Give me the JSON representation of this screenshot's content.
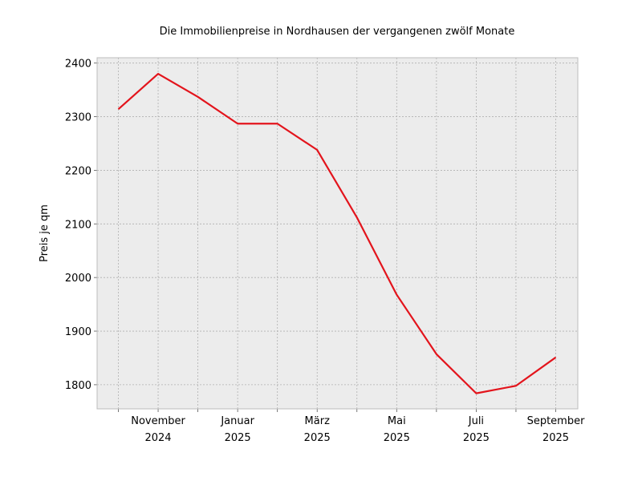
{
  "chart_data": {
    "type": "line",
    "title": "Die Immobilienpreise in Nordhausen der vergangenen zwölf Monate",
    "xlabel": "",
    "ylabel": "Preis je qm",
    "ylim": [
      1755,
      2410
    ],
    "yticks": [
      1800,
      1900,
      2000,
      2100,
      2200,
      2300,
      2400
    ],
    "x": [
      "2024-10",
      "2024-11",
      "2024-12",
      "2025-01",
      "2025-02",
      "2025-03",
      "2025-04",
      "2025-05",
      "2025-06",
      "2025-07",
      "2025-08",
      "2025-09"
    ],
    "xtick_labels": [
      {
        "x": "2024-11",
        "line1": "November",
        "line2": "2024"
      },
      {
        "x": "2025-01",
        "line1": "Januar",
        "line2": "2025"
      },
      {
        "x": "2025-03",
        "line1": "März",
        "line2": "2025"
      },
      {
        "x": "2025-05",
        "line1": "Mai",
        "line2": "2025"
      },
      {
        "x": "2025-07",
        "line1": "Juli",
        "line2": "2025"
      },
      {
        "x": "2025-09",
        "line1": "September",
        "line2": "2025"
      }
    ],
    "series": [
      {
        "values": [
          2314,
          2380,
          2337,
          2287,
          2287,
          2238,
          2112,
          1968,
          1857,
          1784,
          1798,
          1851
        ],
        "color": "#e3141c"
      }
    ],
    "grid": true,
    "background": "#ececec",
    "grid_color": "#b0b0b0"
  }
}
